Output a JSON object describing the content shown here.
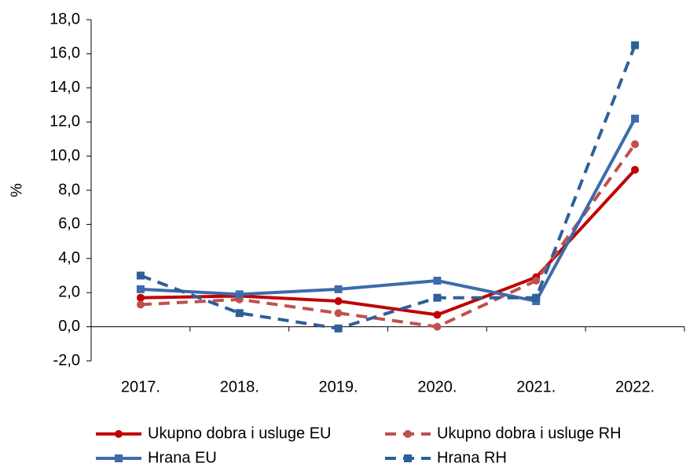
{
  "chart_data": {
    "type": "line",
    "ylabel": "%",
    "categories": [
      "2017.",
      "2018.",
      "2019.",
      "2020.",
      "2021.",
      "2022."
    ],
    "series": [
      {
        "name": "Ukupno dobra i usluge EU",
        "color": "#c00000",
        "dashed": false,
        "marker": "circle",
        "values": [
          1.7,
          1.8,
          1.5,
          0.7,
          2.9,
          9.2
        ]
      },
      {
        "name": "Ukupno dobra i usluge RH",
        "color": "#c0504d",
        "dashed": true,
        "marker": "circle",
        "values": [
          1.3,
          1.6,
          0.8,
          0.0,
          2.7,
          10.7
        ]
      },
      {
        "name": "Hrana EU",
        "color": "#3d6bab",
        "dashed": false,
        "marker": "square",
        "values": [
          2.2,
          1.9,
          2.2,
          2.7,
          1.5,
          12.2
        ]
      },
      {
        "name": "Hrana RH",
        "color": "#2f5f99",
        "dashed": true,
        "marker": "square",
        "values": [
          3.0,
          0.8,
          -0.1,
          1.7,
          1.7,
          16.5
        ]
      }
    ],
    "ylim": [
      -2,
      18
    ],
    "yticks": [
      {
        "value": -2,
        "label": "-2,0"
      },
      {
        "value": 0,
        "label": "0,0"
      },
      {
        "value": 2,
        "label": "2,0"
      },
      {
        "value": 4,
        "label": "4,0"
      },
      {
        "value": 6,
        "label": "6,0"
      },
      {
        "value": 8,
        "label": "8,0"
      },
      {
        "value": 10,
        "label": "10,0"
      },
      {
        "value": 12,
        "label": "12,0"
      },
      {
        "value": 14,
        "label": "14,0"
      },
      {
        "value": 16,
        "label": "16,0"
      },
      {
        "value": 18,
        "label": "18,0"
      }
    ],
    "grid": false,
    "legend": "bottom"
  }
}
